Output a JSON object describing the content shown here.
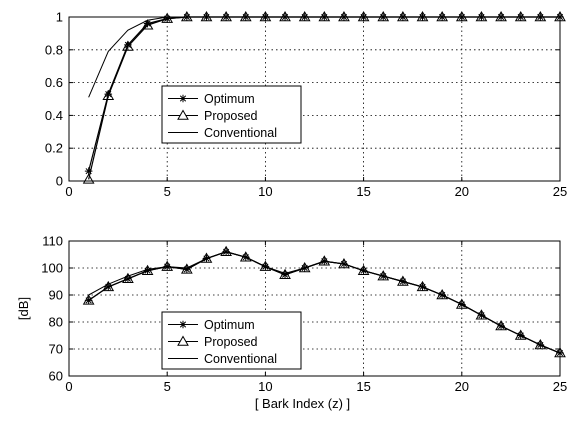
{
  "chart_data": [
    {
      "type": "line",
      "xlabel": "",
      "ylabel": "",
      "xlim": [
        0,
        25
      ],
      "ylim": [
        0,
        1
      ],
      "xticks": [
        "0",
        "5",
        "10",
        "15",
        "20",
        "25"
      ],
      "yticks": [
        "0",
        "0.2",
        "0.4",
        "0.6",
        "0.8",
        "1"
      ],
      "grid": true,
      "legend_position": "center-left",
      "series": [
        {
          "name": "Optimum",
          "marker": "star",
          "x": [
            1,
            2,
            3,
            4,
            5,
            6,
            7,
            8,
            9,
            10,
            11,
            12,
            13,
            14,
            15,
            16,
            17,
            18,
            19,
            20,
            21,
            22,
            23,
            24,
            25
          ],
          "y": [
            0.06,
            0.53,
            0.83,
            0.96,
            0.99,
            1,
            1,
            1,
            1,
            1,
            1,
            1,
            1,
            1,
            1,
            1,
            1,
            1,
            1,
            1,
            1,
            1,
            1,
            1,
            1
          ]
        },
        {
          "name": "Proposed",
          "marker": "triangle",
          "x": [
            1,
            2,
            3,
            4,
            5,
            6,
            7,
            8,
            9,
            10,
            11,
            12,
            13,
            14,
            15,
            16,
            17,
            18,
            19,
            20,
            21,
            22,
            23,
            24,
            25
          ],
          "y": [
            0.01,
            0.52,
            0.82,
            0.95,
            0.99,
            1,
            1,
            1,
            1,
            1,
            1,
            1,
            1,
            1,
            1,
            1,
            1,
            1,
            1,
            1,
            1,
            1,
            1,
            1,
            1
          ]
        },
        {
          "name": "Conventional",
          "marker": "none",
          "x": [
            1,
            2,
            3,
            4,
            5,
            6,
            7,
            8,
            9,
            10,
            11,
            12,
            13,
            14,
            15,
            16,
            17,
            18,
            19,
            20,
            21,
            22,
            23,
            24,
            25
          ],
          "y": [
            0.51,
            0.79,
            0.92,
            0.98,
            1,
            1,
            1,
            1,
            1,
            1,
            1,
            1,
            1,
            1,
            1,
            1,
            1,
            1,
            1,
            1,
            1,
            1,
            1,
            1,
            1
          ]
        }
      ]
    },
    {
      "type": "line",
      "xlabel": "[ Bark Index (z) ]",
      "ylabel": "[dB]",
      "xlim": [
        0,
        25
      ],
      "ylim": [
        60,
        110
      ],
      "xticks": [
        "0",
        "5",
        "10",
        "15",
        "20",
        "25"
      ],
      "yticks": [
        "60",
        "70",
        "80",
        "90",
        "100",
        "110"
      ],
      "grid": true,
      "legend_position": "center-left",
      "series": [
        {
          "name": "Optimum",
          "marker": "star",
          "x": [
            1,
            2,
            3,
            4,
            5,
            6,
            7,
            8,
            9,
            10,
            11,
            12,
            13,
            14,
            15,
            16,
            17,
            18,
            19,
            20,
            21,
            22,
            23,
            24,
            25
          ],
          "y": [
            88,
            93,
            96,
            99,
            100.5,
            99.5,
            103.5,
            106,
            104,
            100.5,
            97.5,
            100,
            102.5,
            101.5,
            99,
            97,
            95,
            93,
            90,
            86.5,
            82.5,
            78.5,
            75,
            71.5,
            68.5
          ]
        },
        {
          "name": "Proposed",
          "marker": "triangle",
          "x": [
            1,
            2,
            3,
            4,
            5,
            6,
            7,
            8,
            9,
            10,
            11,
            12,
            13,
            14,
            15,
            16,
            17,
            18,
            19,
            20,
            21,
            22,
            23,
            24,
            25
          ],
          "y": [
            88,
            93,
            96,
            99,
            100.5,
            99.5,
            103.5,
            106,
            104,
            100.5,
            97.5,
            100,
            102.5,
            101.5,
            99,
            97,
            95,
            93,
            90,
            86.5,
            82.5,
            78.5,
            75,
            71.5,
            68.5
          ]
        },
        {
          "name": "Conventional",
          "marker": "none",
          "x": [
            1,
            2,
            3,
            4,
            5,
            6,
            7,
            8,
            9,
            10,
            11,
            12,
            13,
            14,
            15,
            16,
            17,
            18,
            19,
            20,
            21,
            22,
            23,
            24,
            25
          ],
          "y": [
            90,
            94,
            97,
            99.5,
            100.5,
            100,
            103.5,
            106,
            104,
            100.5,
            98,
            100,
            102.5,
            101.5,
            99,
            97,
            95,
            93,
            90,
            86.5,
            82.5,
            78.5,
            75,
            71.5,
            68.5
          ]
        }
      ]
    }
  ]
}
